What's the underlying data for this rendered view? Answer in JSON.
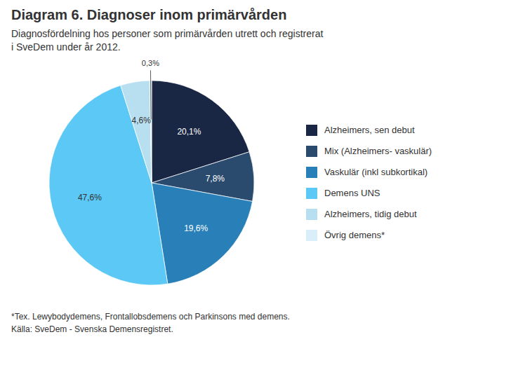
{
  "chart_data": {
    "type": "pie",
    "title": "Diagram 6. Diagnoser inom primärvården",
    "subtitle": "Diagnosfördelning hos personer som primärvården utrett och registrerat\ni SveDem under år 2012.",
    "categories": [
      "Alzheimers, sen debut",
      "Mix (Alzheimers- vaskulär)",
      "Vaskulär (inkl subkortikal)",
      "Demens UNS",
      "Alzheimers, tidig debut",
      "Övrig demens*"
    ],
    "values": [
      20.1,
      7.8,
      19.6,
      47.6,
      4.6,
      0.3
    ],
    "value_labels": [
      "20,1%",
      "7,8%",
      "19,6%",
      "47,6%",
      "4,6%",
      "0,3%"
    ],
    "colors": [
      "#1a2744",
      "#2a4a6e",
      "#2980b9",
      "#5bc8f5",
      "#b8dff0",
      "#d8eef8"
    ],
    "data_labels": true,
    "legend": "right",
    "annotations": [
      "*Tex. Lewybodydemens, Frontallobsdemens och Parkinsons med demens.",
      "Källa: SveDem - Svenska Demensregistret."
    ]
  }
}
